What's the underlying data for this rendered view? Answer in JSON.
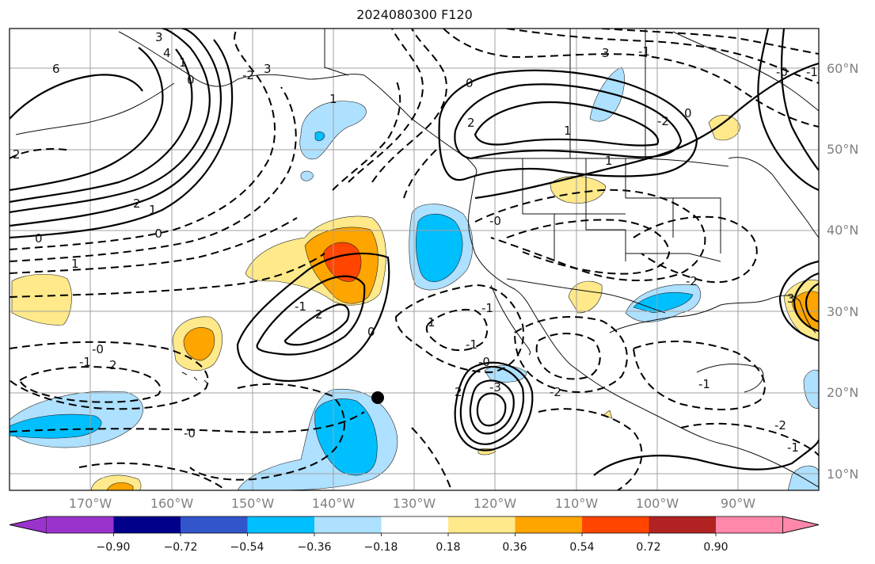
{
  "title": "2024080300 F120",
  "map": {
    "lat_labels": [
      "60°N",
      "50°N",
      "40°N",
      "30°N",
      "20°N",
      "10°N"
    ],
    "lon_labels": [
      "170°W",
      "160°W",
      "150°W",
      "140°W",
      "130°W",
      "120°W",
      "110°W",
      "100°W",
      "90°W"
    ],
    "lat_range": [
      8,
      65
    ],
    "lon_range": [
      -180,
      -80
    ],
    "gridlines": true,
    "coastlines": true,
    "marker": {
      "symbol": "black-dot",
      "lat": 19.5,
      "lon": -134.5
    },
    "contour_labels": [
      "6",
      "3",
      "4",
      "1",
      "0",
      "2",
      "-2",
      "3",
      "1",
      "2",
      "1",
      "0",
      "-0",
      "1",
      "2",
      "-1",
      "2",
      "1",
      "0",
      "-2",
      "1",
      "-0",
      "-0",
      "-1",
      "2",
      "-0",
      "-1",
      "1",
      "-1",
      "2",
      "-2",
      "-3",
      "3",
      "-1",
      "0",
      "-0",
      "-2",
      "3",
      "0",
      "-0",
      "-1",
      "-2",
      "-1",
      "-1"
    ]
  },
  "colorbar": {
    "ticks": [
      "−0.90",
      "−0.72",
      "−0.54",
      "−0.36",
      "−0.18",
      "0.18",
      "0.36",
      "0.54",
      "0.72",
      "0.90"
    ],
    "colors": [
      "#9933cc",
      "#00008b",
      "#3355cc",
      "#00bfff",
      "#aee0ff",
      "#ffffff",
      "#ffe98a",
      "#ffa500",
      "#ff4500",
      "#b22222",
      "#ff88aa",
      "#ff88aa"
    ]
  }
}
